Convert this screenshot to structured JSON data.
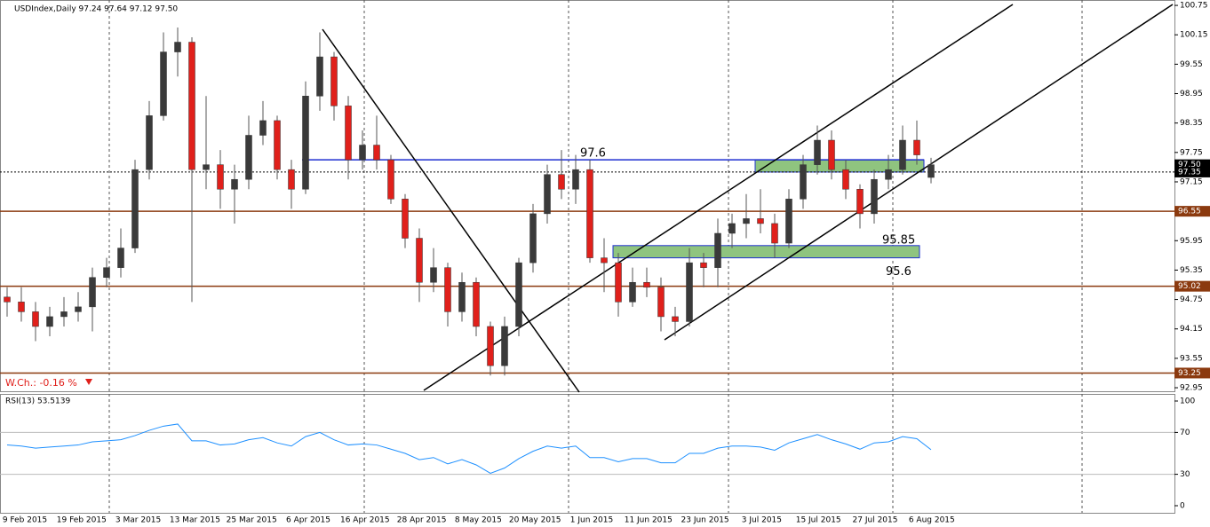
{
  "chart_data": {
    "type": "candlestick",
    "title": "USDIndex,Daily  97.24 97.64 97.12 97.50",
    "up_color": "#3a3a3a",
    "down_color": "#e0201b",
    "candles": [
      [
        94.8,
        95.0,
        94.4,
        94.7
      ],
      [
        94.7,
        95.0,
        94.3,
        94.5
      ],
      [
        94.5,
        94.7,
        93.9,
        94.2
      ],
      [
        94.2,
        94.6,
        94.0,
        94.4
      ],
      [
        94.4,
        94.8,
        94.2,
        94.5
      ],
      [
        94.5,
        94.9,
        94.3,
        94.6
      ],
      [
        94.6,
        95.4,
        94.1,
        95.2
      ],
      [
        95.2,
        95.6,
        95.0,
        95.4
      ],
      [
        95.4,
        96.2,
        95.2,
        95.8
      ],
      [
        95.8,
        97.6,
        95.7,
        97.4
      ],
      [
        97.4,
        98.8,
        97.2,
        98.5
      ],
      [
        98.5,
        100.2,
        98.4,
        99.8
      ],
      [
        99.8,
        100.3,
        99.3,
        100.0
      ],
      [
        100.0,
        100.1,
        94.7,
        97.4
      ],
      [
        97.4,
        98.9,
        97.0,
        97.5
      ],
      [
        97.5,
        97.8,
        96.6,
        97.0
      ],
      [
        97.0,
        97.5,
        96.3,
        97.2
      ],
      [
        97.2,
        98.5,
        97.0,
        98.1
      ],
      [
        98.1,
        98.8,
        97.9,
        98.4
      ],
      [
        98.4,
        98.5,
        97.2,
        97.4
      ],
      [
        97.4,
        97.6,
        96.6,
        97.0
      ],
      [
        97.0,
        99.2,
        96.9,
        98.9
      ],
      [
        98.9,
        100.2,
        98.6,
        99.7
      ],
      [
        99.7,
        99.8,
        98.4,
        98.7
      ],
      [
        98.7,
        98.9,
        97.2,
        97.6
      ],
      [
        97.6,
        98.2,
        97.4,
        97.9
      ],
      [
        97.9,
        98.5,
        97.4,
        97.6
      ],
      [
        97.6,
        97.7,
        96.7,
        96.8
      ],
      [
        96.8,
        96.9,
        95.8,
        96.0
      ],
      [
        96.0,
        96.2,
        94.7,
        95.1
      ],
      [
        95.1,
        95.8,
        94.9,
        95.4
      ],
      [
        95.4,
        95.5,
        94.2,
        94.5
      ],
      [
        94.5,
        95.3,
        94.3,
        95.1
      ],
      [
        95.1,
        95.2,
        94.0,
        94.2
      ],
      [
        94.2,
        94.3,
        93.2,
        93.4
      ],
      [
        93.4,
        94.4,
        93.2,
        94.2
      ],
      [
        94.2,
        95.6,
        94.0,
        95.5
      ],
      [
        95.5,
        96.7,
        95.3,
        96.5
      ],
      [
        96.5,
        97.5,
        96.3,
        97.3
      ],
      [
        97.3,
        97.8,
        96.8,
        97.0
      ],
      [
        97.0,
        97.7,
        96.7,
        97.4
      ],
      [
        97.4,
        97.6,
        95.5,
        95.6
      ],
      [
        95.6,
        96.0,
        94.9,
        95.5
      ],
      [
        95.5,
        95.7,
        94.4,
        94.7
      ],
      [
        94.7,
        95.4,
        94.6,
        95.1
      ],
      [
        95.1,
        95.4,
        94.8,
        95.0
      ],
      [
        95.0,
        95.2,
        94.1,
        94.4
      ],
      [
        94.4,
        94.6,
        94.0,
        94.3
      ],
      [
        94.3,
        95.8,
        94.2,
        95.5
      ],
      [
        95.5,
        95.7,
        95.0,
        95.4
      ],
      [
        95.4,
        96.4,
        95.0,
        96.1
      ],
      [
        96.1,
        96.5,
        95.8,
        96.3
      ],
      [
        96.3,
        96.9,
        96.0,
        96.4
      ],
      [
        96.4,
        97.0,
        96.1,
        96.3
      ],
      [
        96.3,
        96.5,
        95.6,
        95.9
      ],
      [
        95.9,
        97.0,
        95.8,
        96.8
      ],
      [
        96.8,
        97.7,
        96.6,
        97.5
      ],
      [
        97.5,
        98.3,
        97.3,
        98.0
      ],
      [
        98.0,
        98.2,
        97.2,
        97.4
      ],
      [
        97.4,
        97.6,
        96.8,
        97.0
      ],
      [
        97.0,
        97.1,
        96.2,
        96.5
      ],
      [
        96.5,
        97.4,
        96.3,
        97.2
      ],
      [
        97.2,
        97.7,
        97.0,
        97.4
      ],
      [
        97.4,
        98.3,
        97.3,
        98.0
      ],
      [
        98.0,
        98.4,
        97.5,
        97.7
      ],
      [
        97.24,
        97.64,
        97.12,
        97.5
      ]
    ],
    "ylim": [
      92.86,
      100.86
    ],
    "yticks": [
      100.75,
      100.15,
      99.55,
      98.95,
      98.35,
      97.75,
      97.15,
      96.55,
      95.95,
      95.35,
      94.75,
      94.15,
      93.55,
      92.95
    ],
    "x_labels": [
      "9 Feb 2015",
      "19 Feb 2015",
      "3 Mar 2015",
      "13 Mar 2015",
      "25 Mar 2015",
      "6 Apr 2015",
      "16 Apr 2015",
      "28 Apr 2015",
      "8 May 2015",
      "20 May 2015",
      "1 Jun 2015",
      "11 Jun 2015",
      "23 Jun 2015",
      "3 Jul 2015",
      "15 Jul 2015",
      "27 Jul 2015",
      "6 Aug 2015"
    ],
    "levels": [
      {
        "value": 96.55,
        "label": "96.55"
      },
      {
        "value": 95.02,
        "label": "95.02"
      },
      {
        "value": 93.25,
        "label": "93.25"
      }
    ],
    "level_color": "#8b3a0f",
    "resistance": {
      "value": 97.6,
      "label": "97.6",
      "color": "#1f2fd0"
    },
    "zones": [
      {
        "low": 95.6,
        "high": 95.85,
        "low_label": "95.6",
        "high_label": "95.85"
      },
      {
        "low": 97.35,
        "high": 97.6
      }
    ],
    "zone_color": "#8fc47f",
    "bid": 97.35,
    "last": {
      "value": 97.5,
      "label": "97.50"
    },
    "weekly_change": "W.Ch.: -0.16 %",
    "rsi": {
      "label": "RSI(13) 53.5139",
      "color": "#1e90ff",
      "ylim": [
        0,
        100
      ],
      "yticks": [
        100,
        70,
        30,
        0
      ],
      "values": [
        58,
        57,
        55,
        56,
        57,
        58,
        61,
        62,
        63,
        67,
        72,
        76,
        78,
        62,
        62,
        58,
        59,
        63,
        65,
        60,
        57,
        66,
        70,
        63,
        58,
        59,
        58,
        54,
        50,
        44,
        46,
        40,
        44,
        39,
        31,
        36,
        45,
        52,
        57,
        55,
        57,
        46,
        46,
        42,
        45,
        45,
        41,
        41,
        50,
        50,
        55,
        57,
        57,
        56,
        53,
        60,
        64,
        68,
        63,
        59,
        54,
        60,
        61,
        66,
        64,
        53.5139
      ]
    }
  }
}
